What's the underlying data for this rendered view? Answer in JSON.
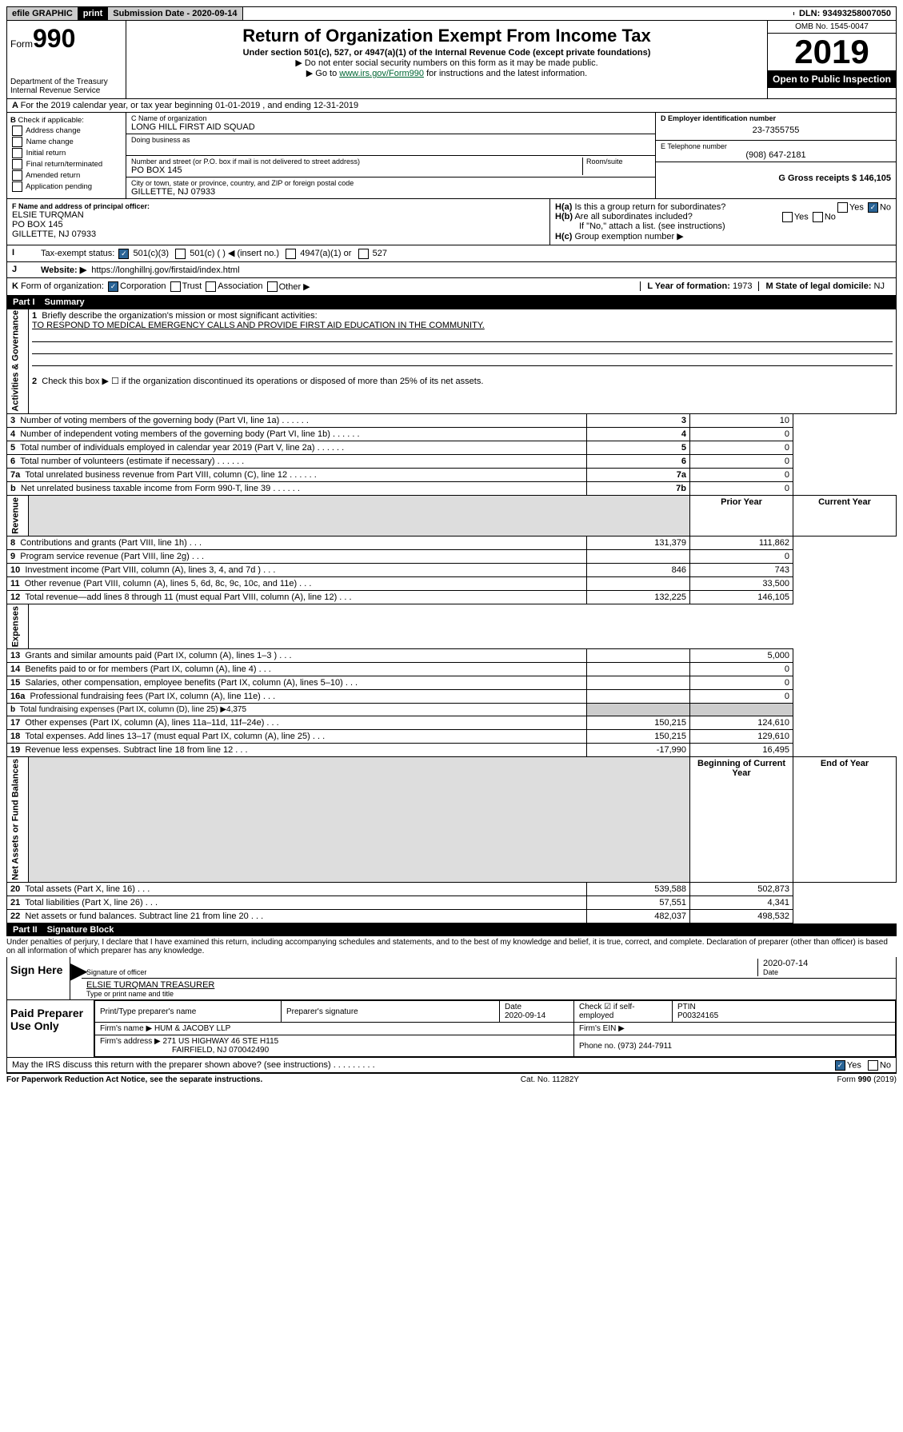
{
  "topbar": {
    "efile": "efile GRAPHIC",
    "print": "print",
    "subdate_label": "Submission Date - 2020-09-14",
    "dln": "DLN: 93493258007050"
  },
  "header": {
    "form_prefix": "Form",
    "form_num": "990",
    "title": "Return of Organization Exempt From Income Tax",
    "subtitle": "Under section 501(c), 527, or 4947(a)(1) of the Internal Revenue Code (except private foundations)",
    "warn": "Do not enter social security numbers on this form as it may be made public.",
    "goto_pre": "Go to ",
    "goto_link": "www.irs.gov/Form990",
    "goto_post": " for instructions and the latest information.",
    "omb": "OMB No. 1545-0047",
    "year": "2019",
    "open": "Open to Public Inspection",
    "dept": "Department of the Treasury\nInternal Revenue Service"
  },
  "line_a": "For the 2019 calendar year, or tax year beginning 01-01-2019   , and ending 12-31-2019",
  "check_b": {
    "label": "Check if applicable:",
    "items": [
      "Address change",
      "Name change",
      "Initial return",
      "Final return/terminated",
      "Amended return",
      "Application pending"
    ]
  },
  "org": {
    "c_label": "C Name of organization",
    "name": "LONG HILL FIRST AID SQUAD",
    "dba_label": "Doing business as",
    "addr_label": "Number and street (or P.O. box if mail is not delivered to street address)",
    "room_label": "Room/suite",
    "addr": "PO BOX 145",
    "city_label": "City or town, state or province, country, and ZIP or foreign postal code",
    "city": "GILLETTE, NJ  07933"
  },
  "right": {
    "d_label": "D Employer identification number",
    "ein": "23-7355755",
    "e_label": "E Telephone number",
    "phone": "(908) 647-2181",
    "g_label": "G Gross receipts $ 146,105"
  },
  "f": {
    "label": "F  Name and address of principal officer:",
    "name": "ELSIE TURQMAN",
    "addr1": "PO BOX 145",
    "addr2": "GILLETTE, NJ  07933"
  },
  "h": {
    "a": "Is this a group return for subordinates?",
    "b": "Are all subordinates included?",
    "b2": "If \"No,\" attach a list. (see instructions)",
    "c": "Group exemption number ▶"
  },
  "i": {
    "label": "Tax-exempt status:",
    "opts": [
      "501(c)(3)",
      "501(c) (  ) ◀ (insert no.)",
      "4947(a)(1) or",
      "527"
    ]
  },
  "j": {
    "label": "Website: ▶",
    "url": "https://longhillnj.gov/firstaid/index.html"
  },
  "k": {
    "label": "Form of organization:",
    "opts": [
      "Corporation",
      "Trust",
      "Association",
      "Other ▶"
    ],
    "l_label": "L Year of formation:",
    "l_val": "1973",
    "m_label": "M State of legal domicile:",
    "m_val": "NJ"
  },
  "part1": {
    "num": "Part I",
    "title": "Summary"
  },
  "summary": {
    "line1_label": "Briefly describe the organization's mission or most significant activities:",
    "line1_text": "TO RESPOND TO MEDICAL EMERGENCY CALLS AND PROVIDE FIRST AID EDUCATION IN THE COMMUNITY.",
    "line2": "Check this box ▶ ☐  if the organization discontinued its operations or disposed of more than 25% of its net assets.",
    "rows_gov": [
      {
        "n": "3",
        "t": "Number of voting members of the governing body (Part VI, line 1a)",
        "bn": "3",
        "v": "10"
      },
      {
        "n": "4",
        "t": "Number of independent voting members of the governing body (Part VI, line 1b)",
        "bn": "4",
        "v": "0"
      },
      {
        "n": "5",
        "t": "Total number of individuals employed in calendar year 2019 (Part V, line 2a)",
        "bn": "5",
        "v": "0"
      },
      {
        "n": "6",
        "t": "Total number of volunteers (estimate if necessary)",
        "bn": "6",
        "v": "0"
      },
      {
        "n": "7a",
        "t": "Total unrelated business revenue from Part VIII, column (C), line 12",
        "bn": "7a",
        "v": "0"
      },
      {
        "n": "b",
        "t": "Net unrelated business taxable income from Form 990-T, line 39",
        "bn": "7b",
        "v": "0"
      }
    ],
    "hdr_prior": "Prior Year",
    "hdr_curr": "Current Year",
    "rows_rev": [
      {
        "n": "8",
        "t": "Contributions and grants (Part VIII, line 1h)",
        "p": "131,379",
        "c": "111,862"
      },
      {
        "n": "9",
        "t": "Program service revenue (Part VIII, line 2g)",
        "p": "",
        "c": "0"
      },
      {
        "n": "10",
        "t": "Investment income (Part VIII, column (A), lines 3, 4, and 7d )",
        "p": "846",
        "c": "743"
      },
      {
        "n": "11",
        "t": "Other revenue (Part VIII, column (A), lines 5, 6d, 8c, 9c, 10c, and 11e)",
        "p": "",
        "c": "33,500"
      },
      {
        "n": "12",
        "t": "Total revenue—add lines 8 through 11 (must equal Part VIII, column (A), line 12)",
        "p": "132,225",
        "c": "146,105"
      }
    ],
    "rows_exp": [
      {
        "n": "13",
        "t": "Grants and similar amounts paid (Part IX, column (A), lines 1–3 )",
        "p": "",
        "c": "5,000"
      },
      {
        "n": "14",
        "t": "Benefits paid to or for members (Part IX, column (A), line 4)",
        "p": "",
        "c": "0"
      },
      {
        "n": "15",
        "t": "Salaries, other compensation, employee benefits (Part IX, column (A), lines 5–10)",
        "p": "",
        "c": "0"
      },
      {
        "n": "16a",
        "t": "Professional fundraising fees (Part IX, column (A), line 11e)",
        "p": "",
        "c": "0"
      },
      {
        "n": "b",
        "t": "Total fundraising expenses (Part IX, column (D), line 25) ▶4,375",
        "p": null,
        "c": null
      },
      {
        "n": "17",
        "t": "Other expenses (Part IX, column (A), lines 11a–11d, 11f–24e)",
        "p": "150,215",
        "c": "124,610"
      },
      {
        "n": "18",
        "t": "Total expenses. Add lines 13–17 (must equal Part IX, column (A), line 25)",
        "p": "150,215",
        "c": "129,610"
      },
      {
        "n": "19",
        "t": "Revenue less expenses. Subtract line 18 from line 12",
        "p": "-17,990",
        "c": "16,495"
      }
    ],
    "hdr_beg": "Beginning of Current Year",
    "hdr_end": "End of Year",
    "rows_net": [
      {
        "n": "20",
        "t": "Total assets (Part X, line 16)",
        "p": "539,588",
        "c": "502,873"
      },
      {
        "n": "21",
        "t": "Total liabilities (Part X, line 26)",
        "p": "57,551",
        "c": "4,341"
      },
      {
        "n": "22",
        "t": "Net assets or fund balances. Subtract line 21 from line 20",
        "p": "482,037",
        "c": "498,532"
      }
    ],
    "tabs": {
      "gov": "Activities & Governance",
      "rev": "Revenue",
      "exp": "Expenses",
      "net": "Net Assets or Fund Balances"
    }
  },
  "part2": {
    "num": "Part II",
    "title": "Signature Block",
    "perjury": "Under penalties of perjury, I declare that I have examined this return, including accompanying schedules and statements, and to the best of my knowledge and belief, it is true, correct, and complete. Declaration of preparer (other than officer) is based on all information of which preparer has any knowledge."
  },
  "sign": {
    "here": "Sign Here",
    "sig_label": "Signature of officer",
    "date": "2020-07-14",
    "date_label": "Date",
    "name": "ELSIE TURQMAN  TREASURER",
    "name_label": "Type or print name and title"
  },
  "paid": {
    "label": "Paid Preparer Use Only",
    "h_name": "Print/Type preparer's name",
    "h_sig": "Preparer's signature",
    "h_date": "Date",
    "date": "2020-09-14",
    "h_chk": "Check ☑ if self-employed",
    "h_ptin": "PTIN",
    "ptin": "P00324165",
    "firm_l": "Firm's name    ▶",
    "firm": "HUM & JACOBY LLP",
    "ein_l": "Firm's EIN ▶",
    "addr_l": "Firm's address ▶",
    "addr": "271 US HIGHWAY 46 STE H115",
    "addr2": "FAIRFIELD, NJ  070042490",
    "phone_l": "Phone no.",
    "phone": "(973) 244-7911"
  },
  "discuss": "May the IRS discuss this return with the preparer shown above? (see instructions)",
  "footer": {
    "pra": "For Paperwork Reduction Act Notice, see the separate instructions.",
    "cat": "Cat. No. 11282Y",
    "form": "Form 990 (2019)"
  }
}
